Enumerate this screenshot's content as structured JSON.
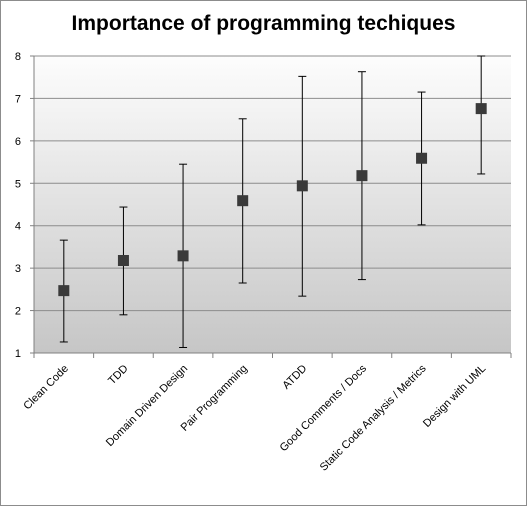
{
  "chart_data": {
    "type": "scatter",
    "title": "Importance of programming techiques",
    "xlabel": "",
    "ylabel": "",
    "ylim": [
      1,
      8
    ],
    "yticks": [
      "1",
      "2",
      "3",
      "4",
      "5",
      "6",
      "7",
      "8"
    ],
    "grid": true,
    "legend": "none",
    "categories": [
      "Clean Code",
      "TDD",
      "Domain Driven Design",
      "Pair Programming",
      "ATDD",
      "Good Comments  / Docs",
      "Static Code Analysis / Metrics",
      "Design with UML"
    ],
    "values": [
      2.47,
      3.18,
      3.29,
      4.59,
      4.94,
      5.18,
      5.59,
      6.76
    ],
    "error_lower": [
      1.26,
      1.9,
      1.13,
      2.65,
      2.34,
      2.73,
      4.02,
      5.22
    ],
    "error_upper": [
      3.66,
      4.44,
      5.45,
      6.52,
      7.52,
      7.63,
      7.15,
      8.0
    ],
    "colors": {
      "marker": "#3a3a3a",
      "error_bar": "#000000",
      "grid": "#8c8c8c",
      "plot_top": "#fdfdfd",
      "plot_bottom": "#c6c6c6"
    }
  }
}
